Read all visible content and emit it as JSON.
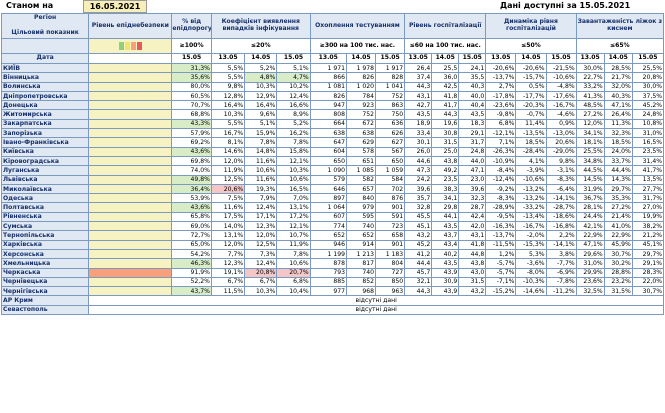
{
  "header": {
    "status_label": "Станом на",
    "status_date": "16.05.2021",
    "available_label": "Дані доступні за 15.05.2021"
  },
  "columns": {
    "region": "Регіон",
    "indicator": "Цільовий показник",
    "date": "Дата",
    "epi": "Рівень епіднебезпеки",
    "pct": "% від епідпорогу",
    "pct_target": "≥100%",
    "detect": "Коефіцієнт виявлення випадків інфікування",
    "detect_target": "≤20%",
    "test": "Охоплення тестуванням",
    "test_target": "≥300 на 100 тис. нас.",
    "hosp": "Рівень госпіталізації",
    "hosp_target": "≤60 на 100 тис. нас.",
    "dyn": "Динаміка рівня госпіталізацій",
    "dyn_target": "≤50%",
    "load": "Завантаженість ліжок з киснем",
    "load_target": "≤65%",
    "d1": "15.05",
    "d2": "13.05",
    "d3": "14.05",
    "d4": "15.05"
  },
  "colors": {
    "green": "#d8ecc8",
    "red": "#f5c6c6",
    "orange": "#f7a07a",
    "yellow": "#f7f2c2",
    "header": "#dfe8f3"
  },
  "no_data": "відсутні дані",
  "rows": [
    {
      "name": "КИЇВ",
      "lvl": "",
      "p": "31,3%",
      "pc": "green",
      "d": [
        "5,5%",
        "5,2%",
        "5,1%"
      ],
      "dc": [
        "",
        "",
        ""
      ],
      "t": [
        "1 971",
        "1 978",
        "1 917"
      ],
      "h": [
        "26,4",
        "25,5",
        "24,1"
      ],
      "y": [
        "-20,6%",
        "-20,6%",
        "-21,5%"
      ],
      "l": [
        "30,0%",
        "28,5%",
        "25,5%"
      ]
    },
    {
      "name": "Вінницька",
      "lvl": "",
      "p": "35,6%",
      "pc": "green",
      "d": [
        "5,5%",
        "4,8%",
        "4,7%"
      ],
      "dc": [
        "",
        "green",
        "green"
      ],
      "t": [
        "866",
        "826",
        "828"
      ],
      "h": [
        "37,4",
        "36,0",
        "35,5"
      ],
      "y": [
        "-13,7%",
        "-15,7%",
        "-10,6%"
      ],
      "l": [
        "22,7%",
        "21,7%",
        "20,8%"
      ]
    },
    {
      "name": "Волинська",
      "lvl": "",
      "p": "80,0%",
      "pc": "",
      "d": [
        "9,8%",
        "10,3%",
        "10,2%"
      ],
      "dc": [
        "",
        "",
        ""
      ],
      "t": [
        "1 081",
        "1 020",
        "1 041"
      ],
      "h": [
        "44,3",
        "42,5",
        "40,3"
      ],
      "y": [
        "2,7%",
        "0,5%",
        "-4,8%"
      ],
      "l": [
        "33,2%",
        "32,0%",
        "30,0%"
      ]
    },
    {
      "name": "Дніпропетровська",
      "lvl": "",
      "p": "60,5%",
      "pc": "",
      "d": [
        "12,8%",
        "12,9%",
        "12,4%"
      ],
      "dc": [
        "",
        "",
        ""
      ],
      "t": [
        "826",
        "784",
        "752"
      ],
      "h": [
        "43,1",
        "41,8",
        "40,0"
      ],
      "y": [
        "-17,8%",
        "-17,7%",
        "-17,6%"
      ],
      "l": [
        "41,3%",
        "40,3%",
        "37,5%"
      ]
    },
    {
      "name": "Донецька",
      "lvl": "",
      "p": "70,7%",
      "pc": "",
      "d": [
        "16,4%",
        "16,4%",
        "16,6%"
      ],
      "dc": [
        "",
        "",
        ""
      ],
      "t": [
        "947",
        "923",
        "863"
      ],
      "h": [
        "42,7",
        "41,7",
        "40,4"
      ],
      "y": [
        "-23,6%",
        "-20,3%",
        "-16,7%"
      ],
      "l": [
        "48,5%",
        "47,1%",
        "45,2%"
      ]
    },
    {
      "name": "Житомирська",
      "lvl": "",
      "p": "68,8%",
      "pc": "",
      "d": [
        "10,3%",
        "9,6%",
        "8,9%"
      ],
      "dc": [
        "",
        "",
        ""
      ],
      "t": [
        "808",
        "752",
        "750"
      ],
      "h": [
        "43,5",
        "44,3",
        "43,5"
      ],
      "y": [
        "-9,8%",
        "-0,7%",
        "-4,6%"
      ],
      "l": [
        "27,2%",
        "26,4%",
        "24,8%"
      ]
    },
    {
      "name": "Закарпатська",
      "lvl": "",
      "p": "43,3%",
      "pc": "green",
      "d": [
        "5,5%",
        "5,1%",
        "5,2%"
      ],
      "dc": [
        "",
        "",
        ""
      ],
      "t": [
        "664",
        "672",
        "636"
      ],
      "h": [
        "18,9",
        "19,6",
        "18,3"
      ],
      "y": [
        "6,8%",
        "11,4%",
        "0,9%"
      ],
      "l": [
        "12,0%",
        "11,3%",
        "10,8%"
      ]
    },
    {
      "name": "Запорізька",
      "lvl": "",
      "p": "57,9%",
      "pc": "",
      "d": [
        "16,7%",
        "15,9%",
        "16,2%"
      ],
      "dc": [
        "",
        "",
        ""
      ],
      "t": [
        "638",
        "638",
        "626"
      ],
      "h": [
        "33,4",
        "30,8",
        "29,1"
      ],
      "y": [
        "-12,1%",
        "-13,5%",
        "-13,0%"
      ],
      "l": [
        "34,1%",
        "32,3%",
        "31,0%"
      ]
    },
    {
      "name": "Івано-Франківська",
      "lvl": "",
      "p": "69,2%",
      "pc": "",
      "d": [
        "8,1%",
        "7,8%",
        "7,8%"
      ],
      "dc": [
        "",
        "",
        ""
      ],
      "t": [
        "647",
        "629",
        "627"
      ],
      "h": [
        "30,1",
        "31,5",
        "31,7"
      ],
      "y": [
        "7,1%",
        "18,5%",
        "20,6%"
      ],
      "l": [
        "18,1%",
        "18,5%",
        "16,5%"
      ]
    },
    {
      "name": "Київська",
      "lvl": "",
      "p": "43,6%",
      "pc": "green",
      "d": [
        "14,6%",
        "14,8%",
        "15,8%"
      ],
      "dc": [
        "",
        "",
        ""
      ],
      "t": [
        "604",
        "578",
        "567"
      ],
      "h": [
        "26,0",
        "25,0",
        "24,8"
      ],
      "y": [
        "-26,3%",
        "-28,4%",
        "-29,0%"
      ],
      "l": [
        "25,5%",
        "24,0%",
        "23,5%"
      ]
    },
    {
      "name": "Кіровоградська",
      "lvl": "",
      "p": "69,8%",
      "pc": "",
      "d": [
        "12,0%",
        "11,6%",
        "12,1%"
      ],
      "dc": [
        "",
        "",
        ""
      ],
      "t": [
        "650",
        "651",
        "650"
      ],
      "h": [
        "44,6",
        "43,8",
        "44,0"
      ],
      "y": [
        "-10,9%",
        "4,1%",
        "9,8%"
      ],
      "l": [
        "34,8%",
        "33,7%",
        "31,4%"
      ]
    },
    {
      "name": "Луганська",
      "lvl": "",
      "p": "74,0%",
      "pc": "",
      "d": [
        "11,9%",
        "10,6%",
        "10,3%"
      ],
      "dc": [
        "",
        "",
        ""
      ],
      "t": [
        "1 090",
        "1 085",
        "1 059"
      ],
      "h": [
        "47,3",
        "49,2",
        "47,1"
      ],
      "y": [
        "-8,4%",
        "-3,9%",
        "-3,1%"
      ],
      "l": [
        "44,5%",
        "44,4%",
        "41,7%"
      ]
    },
    {
      "name": "Львівська",
      "lvl": "",
      "p": "49,8%",
      "pc": "green",
      "d": [
        "12,5%",
        "11,6%",
        "10,6%"
      ],
      "dc": [
        "",
        "",
        ""
      ],
      "t": [
        "579",
        "582",
        "584"
      ],
      "h": [
        "24,2",
        "23,5",
        "23,0"
      ],
      "y": [
        "-12,4%",
        "-10,6%",
        "-8,3%"
      ],
      "l": [
        "14,5%",
        "14,3%",
        "13,5%"
      ]
    },
    {
      "name": "Миколаївська",
      "lvl": "",
      "p": "36,4%",
      "pc": "green",
      "d": [
        "20,6%",
        "19,3%",
        "16,5%"
      ],
      "dc": [
        "red",
        "",
        ""
      ],
      "t": [
        "646",
        "657",
        "702"
      ],
      "h": [
        "39,6",
        "38,3",
        "39,6"
      ],
      "y": [
        "-9,2%",
        "-13,2%",
        "-6,4%"
      ],
      "l": [
        "31,9%",
        "29,7%",
        "27,7%"
      ]
    },
    {
      "name": "Одеська",
      "lvl": "",
      "p": "53,9%",
      "pc": "",
      "d": [
        "7,5%",
        "7,9%",
        "7,0%"
      ],
      "dc": [
        "",
        "",
        ""
      ],
      "t": [
        "897",
        "840",
        "876"
      ],
      "h": [
        "35,7",
        "34,1",
        "32,3"
      ],
      "y": [
        "-8,3%",
        "-13,2%",
        "-14,1%"
      ],
      "l": [
        "36,7%",
        "35,3%",
        "31,7%"
      ]
    },
    {
      "name": "Полтавська",
      "lvl": "",
      "p": "43,6%",
      "pc": "green",
      "d": [
        "11,6%",
        "12,4%",
        "13,1%"
      ],
      "dc": [
        "",
        "",
        ""
      ],
      "t": [
        "1 064",
        "979",
        "901"
      ],
      "h": [
        "32,8",
        "29,8",
        "28,7"
      ],
      "y": [
        "-28,9%",
        "-33,2%",
        "-28,7%"
      ],
      "l": [
        "28,1%",
        "27,2%",
        "27,0%"
      ]
    },
    {
      "name": "Рівненська",
      "lvl": "",
      "p": "65,8%",
      "pc": "",
      "d": [
        "17,5%",
        "17,1%",
        "17,2%"
      ],
      "dc": [
        "",
        "",
        ""
      ],
      "t": [
        "607",
        "595",
        "591"
      ],
      "h": [
        "45,5",
        "44,1",
        "42,4"
      ],
      "y": [
        "-9,5%",
        "-13,4%",
        "-18,6%"
      ],
      "l": [
        "24,4%",
        "21,4%",
        "19,9%"
      ]
    },
    {
      "name": "Сумська",
      "lvl": "",
      "p": "69,0%",
      "pc": "",
      "d": [
        "14,0%",
        "12,3%",
        "12,1%"
      ],
      "dc": [
        "",
        "",
        ""
      ],
      "t": [
        "774",
        "740",
        "723"
      ],
      "h": [
        "45,1",
        "43,5",
        "42,0"
      ],
      "y": [
        "-16,3%",
        "-16,7%",
        "-16,8%"
      ],
      "l": [
        "42,1%",
        "41,0%",
        "38,2%"
      ]
    },
    {
      "name": "Тернопільська",
      "lvl": "",
      "p": "72,7%",
      "pc": "",
      "d": [
        "13,1%",
        "12,0%",
        "10,7%"
      ],
      "dc": [
        "",
        "",
        ""
      ],
      "t": [
        "652",
        "652",
        "658"
      ],
      "h": [
        "43,2",
        "43,7",
        "43,1"
      ],
      "y": [
        "-13,7%",
        "-2,0%",
        "2,2%"
      ],
      "l": [
        "22,9%",
        "22,9%",
        "21,2%"
      ]
    },
    {
      "name": "Харківська",
      "lvl": "",
      "p": "65,0%",
      "pc": "",
      "d": [
        "12,0%",
        "12,5%",
        "11,9%"
      ],
      "dc": [
        "",
        "",
        ""
      ],
      "t": [
        "946",
        "914",
        "901"
      ],
      "h": [
        "45,2",
        "43,4",
        "41,8"
      ],
      "y": [
        "-11,5%",
        "-15,3%",
        "-14,1%"
      ],
      "l": [
        "47,1%",
        "45,9%",
        "45,1%"
      ]
    },
    {
      "name": "Херсонська",
      "lvl": "",
      "p": "54,2%",
      "pc": "",
      "d": [
        "7,7%",
        "7,3%",
        "7,8%"
      ],
      "dc": [
        "",
        "",
        ""
      ],
      "t": [
        "1 199",
        "1 213",
        "1 183"
      ],
      "h": [
        "41,2",
        "40,2",
        "44,8"
      ],
      "y": [
        "1,2%",
        "5,3%",
        "3,8%"
      ],
      "l": [
        "29,6%",
        "30,7%",
        "29,7%"
      ]
    },
    {
      "name": "Хмельницька",
      "lvl": "",
      "p": "46,3%",
      "pc": "green",
      "d": [
        "12,3%",
        "12,4%",
        "10,6%"
      ],
      "dc": [
        "",
        "",
        ""
      ],
      "t": [
        "878",
        "817",
        "804"
      ],
      "h": [
        "44,4",
        "43,5",
        "43,8"
      ],
      "y": [
        "-5,7%",
        "-3,6%",
        "-7,7%"
      ],
      "l": [
        "31,0%",
        "30,2%",
        "29,1%"
      ]
    },
    {
      "name": "Черкаська",
      "lvl": "orange",
      "p": "91,9%",
      "pc": "",
      "d": [
        "19,1%",
        "20,8%",
        "20,7%"
      ],
      "dc": [
        "",
        "red",
        "red"
      ],
      "t": [
        "793",
        "740",
        "727"
      ],
      "h": [
        "45,7",
        "43,9",
        "43,0"
      ],
      "y": [
        "-5,7%",
        "-8,0%",
        "-6,9%"
      ],
      "l": [
        "29,9%",
        "28,8%",
        "28,3%"
      ]
    },
    {
      "name": "Чернівецька",
      "lvl": "",
      "p": "52,2%",
      "pc": "",
      "d": [
        "6,7%",
        "6,7%",
        "6,8%"
      ],
      "dc": [
        "",
        "",
        ""
      ],
      "t": [
        "885",
        "852",
        "850"
      ],
      "h": [
        "32,1",
        "30,9",
        "31,5"
      ],
      "y": [
        "-7,1%",
        "-10,3%",
        "-7,8%"
      ],
      "l": [
        "23,6%",
        "23,2%",
        "22,0%"
      ]
    },
    {
      "name": "Чернігівська",
      "lvl": "",
      "p": "43,7%",
      "pc": "green",
      "d": [
        "11,5%",
        "10,3%",
        "10,4%"
      ],
      "dc": [
        "",
        "",
        ""
      ],
      "t": [
        "977",
        "968",
        "963"
      ],
      "h": [
        "44,3",
        "43,9",
        "43,2"
      ],
      "y": [
        "-15,2%",
        "-14,6%",
        "-11,2%"
      ],
      "l": [
        "32,5%",
        "31,5%",
        "30,7%"
      ]
    }
  ],
  "missing": [
    {
      "name": "АР Крим"
    },
    {
      "name": "Севастополь"
    }
  ]
}
